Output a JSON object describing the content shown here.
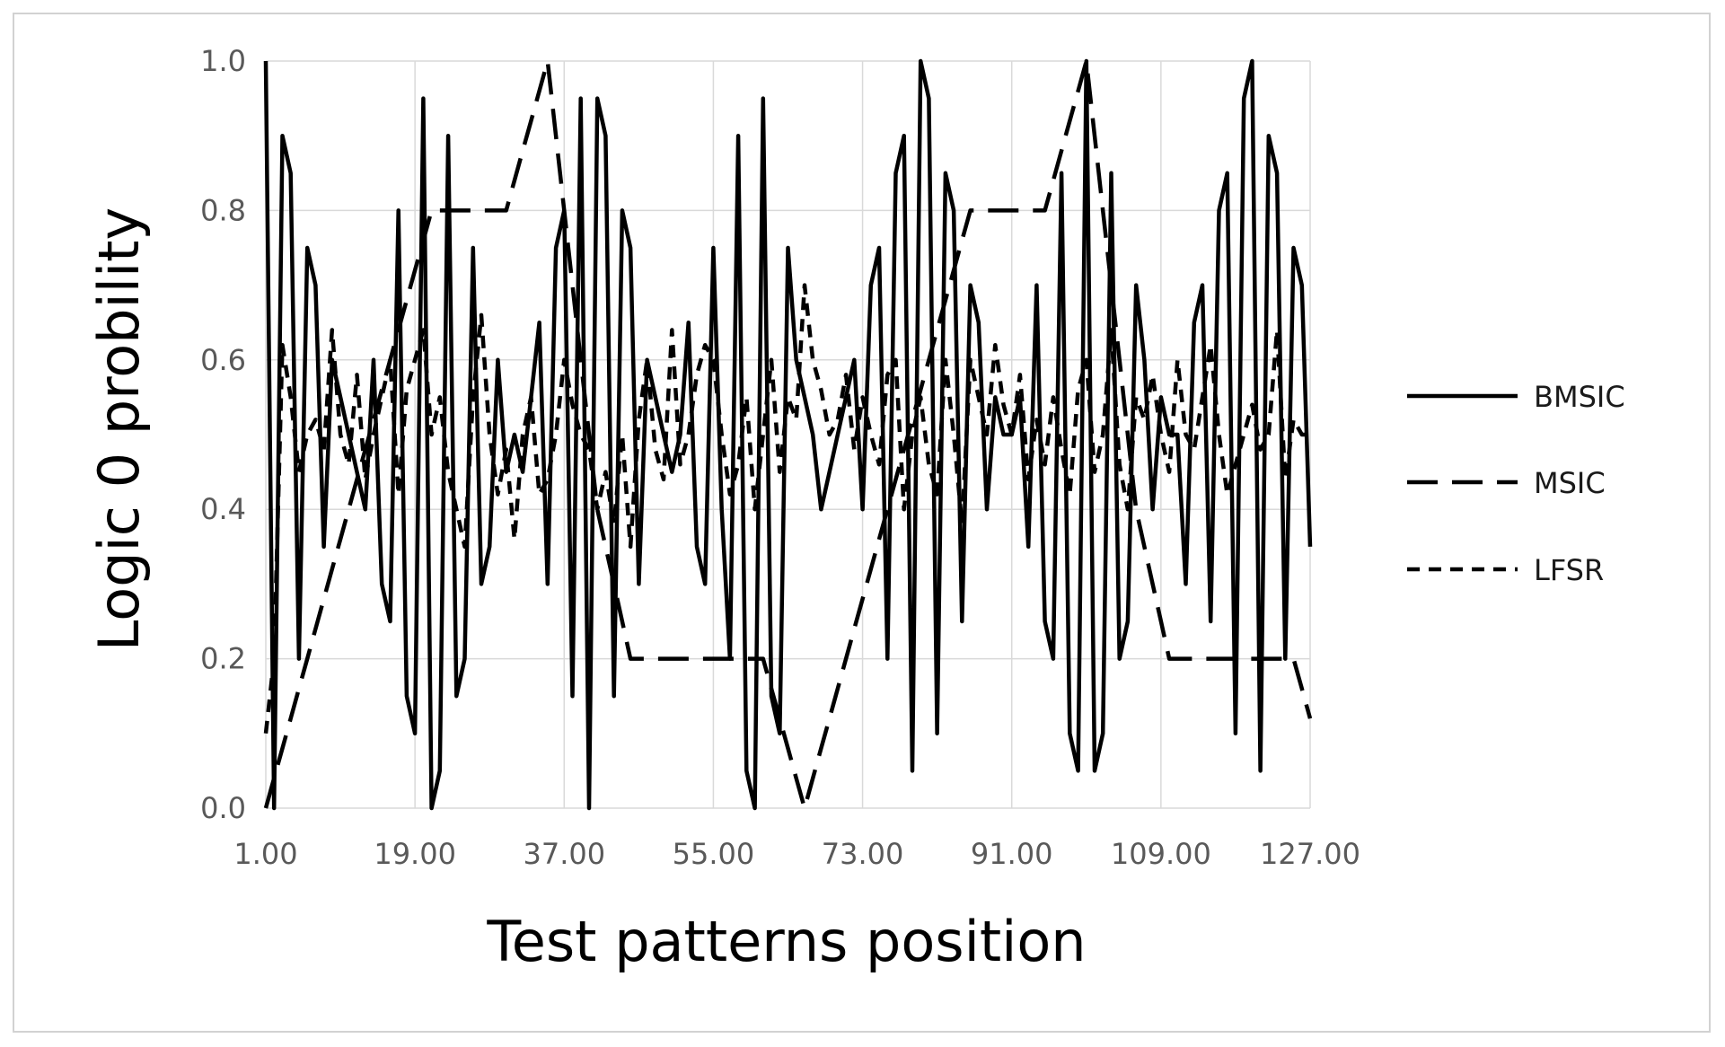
{
  "chart_data": {
    "type": "line",
    "title": "",
    "xlabel": "Test patterns position",
    "ylabel": "Logic 0 probility",
    "xlim": [
      1,
      127
    ],
    "ylim": [
      0,
      1
    ],
    "x_ticks": [
      "1.00",
      "19.00",
      "37.00",
      "55.00",
      "73.00",
      "91.00",
      "109.00",
      "127.00"
    ],
    "y_ticks": [
      "0.0",
      "0.2",
      "0.4",
      "0.6",
      "0.8",
      "1.0"
    ],
    "grid": true,
    "legend_position": "right",
    "series": [
      {
        "name": "BMSIC",
        "style": "solid",
        "color": "#000000",
        "x": [
          1,
          2,
          3,
          4,
          5,
          6,
          7,
          8,
          9,
          10,
          11,
          12,
          13,
          14,
          15,
          16,
          17,
          18,
          19,
          20,
          21,
          22,
          23,
          24,
          25,
          26,
          27,
          28,
          29,
          30,
          31,
          32,
          33,
          34,
          35,
          36,
          37,
          38,
          39,
          40,
          41,
          42,
          43,
          44,
          45,
          46,
          47,
          48,
          49,
          50,
          51,
          52,
          53,
          54,
          55,
          56,
          57,
          58,
          59,
          60,
          61,
          62,
          63,
          64,
          65,
          66,
          67,
          68,
          69,
          70,
          71,
          72,
          73,
          74,
          75,
          76,
          77,
          78,
          79,
          80,
          81,
          82,
          83,
          84,
          85,
          86,
          87,
          88,
          89,
          90,
          91,
          92,
          93,
          94,
          95,
          96,
          97,
          98,
          99,
          100,
          101,
          102,
          103,
          104,
          105,
          106,
          107,
          108,
          109,
          110,
          111,
          112,
          113,
          114,
          115,
          116,
          117,
          118,
          119,
          120,
          121,
          122,
          123,
          124,
          125,
          126,
          127
        ],
        "y": [
          1.0,
          0.0,
          0.9,
          0.85,
          0.2,
          0.75,
          0.7,
          0.35,
          0.6,
          0.55,
          0.5,
          0.45,
          0.4,
          0.6,
          0.3,
          0.25,
          0.8,
          0.15,
          0.1,
          0.95,
          0.0,
          0.05,
          0.9,
          0.15,
          0.2,
          0.75,
          0.3,
          0.35,
          0.6,
          0.45,
          0.5,
          0.45,
          0.55,
          0.65,
          0.3,
          0.75,
          0.8,
          0.15,
          0.95,
          0.0,
          0.95,
          0.9,
          0.15,
          0.8,
          0.75,
          0.3,
          0.6,
          0.55,
          0.5,
          0.45,
          0.5,
          0.65,
          0.35,
          0.3,
          0.75,
          0.4,
          0.2,
          0.9,
          0.05,
          0.0,
          0.95,
          0.15,
          0.1,
          0.75,
          0.6,
          0.55,
          0.5,
          0.4,
          0.45,
          0.5,
          0.55,
          0.6,
          0.4,
          0.7,
          0.75,
          0.2,
          0.85,
          0.9,
          0.05,
          1.0,
          0.95,
          0.1,
          0.85,
          0.8,
          0.25,
          0.7,
          0.65,
          0.4,
          0.55,
          0.5,
          0.5,
          0.55,
          0.35,
          0.7,
          0.25,
          0.2,
          0.85,
          0.1,
          0.05,
          1.0,
          0.05,
          0.1,
          0.85,
          0.2,
          0.25,
          0.7,
          0.6,
          0.4,
          0.55,
          0.5,
          0.5,
          0.3,
          0.65,
          0.7,
          0.25,
          0.8,
          0.85,
          0.1,
          0.95,
          1.0,
          0.05,
          0.9,
          0.85,
          0.2,
          0.75,
          0.7,
          0.35
        ]
      },
      {
        "name": "MSIC",
        "style": "long-dash",
        "color": "#000000",
        "x": [
          1,
          2,
          3,
          4,
          5,
          6,
          7,
          8,
          9,
          10,
          11,
          12,
          13,
          14,
          15,
          16,
          17,
          18,
          19,
          20,
          21,
          22,
          23,
          24,
          25,
          26,
          27,
          28,
          29,
          30,
          31,
          32,
          33,
          34,
          35,
          36,
          37,
          38,
          39,
          40,
          41,
          42,
          43,
          44,
          45,
          46,
          47,
          48,
          49,
          50,
          51,
          52,
          53,
          54,
          55,
          56,
          57,
          58,
          59,
          60,
          61,
          62,
          63,
          64,
          65,
          66,
          67,
          68,
          69,
          70,
          71,
          72,
          73,
          74,
          75,
          76,
          77,
          78,
          79,
          80,
          81,
          82,
          83,
          84,
          85,
          86,
          87,
          88,
          89,
          90,
          91,
          92,
          93,
          94,
          95,
          96,
          97,
          98,
          99,
          100,
          101,
          102,
          103,
          104,
          105,
          106,
          107,
          108,
          109,
          110,
          111,
          112,
          113,
          114,
          115,
          116,
          117,
          118,
          119,
          120,
          121,
          122,
          123,
          124,
          125,
          126,
          127
        ],
        "y": [
          0.0,
          0.04,
          0.08,
          0.12,
          0.16,
          0.2,
          0.24,
          0.28,
          0.32,
          0.36,
          0.4,
          0.44,
          0.48,
          0.52,
          0.56,
          0.6,
          0.64,
          0.68,
          0.72,
          0.76,
          0.8,
          0.8,
          0.8,
          0.8,
          0.8,
          0.8,
          0.8,
          0.8,
          0.8,
          0.8,
          0.84,
          0.88,
          0.92,
          0.96,
          1.0,
          0.9,
          0.8,
          0.7,
          0.6,
          0.5,
          0.4,
          0.35,
          0.3,
          0.25,
          0.2,
          0.2,
          0.2,
          0.2,
          0.2,
          0.2,
          0.2,
          0.2,
          0.2,
          0.2,
          0.2,
          0.2,
          0.2,
          0.2,
          0.2,
          0.2,
          0.2,
          0.16,
          0.12,
          0.08,
          0.04,
          0.0,
          0.04,
          0.08,
          0.12,
          0.16,
          0.2,
          0.24,
          0.28,
          0.32,
          0.36,
          0.4,
          0.44,
          0.48,
          0.52,
          0.56,
          0.6,
          0.64,
          0.68,
          0.72,
          0.76,
          0.8,
          0.8,
          0.8,
          0.8,
          0.8,
          0.8,
          0.8,
          0.8,
          0.8,
          0.8,
          0.84,
          0.88,
          0.92,
          0.96,
          1.0,
          0.9,
          0.8,
          0.7,
          0.6,
          0.5,
          0.4,
          0.35,
          0.3,
          0.25,
          0.2,
          0.2,
          0.2,
          0.2,
          0.2,
          0.2,
          0.2,
          0.2,
          0.2,
          0.2,
          0.2,
          0.2,
          0.2,
          0.2,
          0.2,
          0.2,
          0.16,
          0.12
        ]
      },
      {
        "name": "LFSR",
        "style": "short-dash",
        "color": "#000000",
        "x": [
          1,
          2,
          3,
          4,
          5,
          6,
          7,
          8,
          9,
          10,
          11,
          12,
          13,
          14,
          15,
          16,
          17,
          18,
          19,
          20,
          21,
          22,
          23,
          24,
          25,
          26,
          27,
          28,
          29,
          30,
          31,
          32,
          33,
          34,
          35,
          36,
          37,
          38,
          39,
          40,
          41,
          42,
          43,
          44,
          45,
          46,
          47,
          48,
          49,
          50,
          51,
          52,
          53,
          54,
          55,
          56,
          57,
          58,
          59,
          60,
          61,
          62,
          63,
          64,
          65,
          66,
          67,
          68,
          69,
          70,
          71,
          72,
          73,
          74,
          75,
          76,
          77,
          78,
          79,
          80,
          81,
          82,
          83,
          84,
          85,
          86,
          87,
          88,
          89,
          90,
          91,
          92,
          93,
          94,
          95,
          96,
          97,
          98,
          99,
          100,
          101,
          102,
          103,
          104,
          105,
          106,
          107,
          108,
          109,
          110,
          111,
          112,
          113,
          114,
          115,
          116,
          117,
          118,
          119,
          120,
          121,
          122,
          123,
          124,
          125,
          126,
          127
        ],
        "y": [
          0.1,
          0.2,
          0.62,
          0.55,
          0.45,
          0.5,
          0.52,
          0.48,
          0.64,
          0.5,
          0.46,
          0.58,
          0.44,
          0.5,
          0.55,
          0.6,
          0.42,
          0.56,
          0.6,
          0.64,
          0.5,
          0.55,
          0.45,
          0.4,
          0.35,
          0.55,
          0.66,
          0.5,
          0.42,
          0.48,
          0.36,
          0.5,
          0.55,
          0.42,
          0.44,
          0.5,
          0.6,
          0.54,
          0.5,
          0.48,
          0.4,
          0.45,
          0.38,
          0.5,
          0.35,
          0.52,
          0.6,
          0.48,
          0.44,
          0.64,
          0.46,
          0.5,
          0.58,
          0.62,
          0.6,
          0.5,
          0.42,
          0.46,
          0.55,
          0.4,
          0.5,
          0.6,
          0.45,
          0.55,
          0.52,
          0.7,
          0.6,
          0.56,
          0.5,
          0.52,
          0.58,
          0.48,
          0.55,
          0.5,
          0.46,
          0.58,
          0.6,
          0.4,
          0.5,
          0.55,
          0.46,
          0.42,
          0.6,
          0.5,
          0.38,
          0.6,
          0.55,
          0.5,
          0.62,
          0.54,
          0.5,
          0.58,
          0.44,
          0.52,
          0.46,
          0.55,
          0.48,
          0.42,
          0.56,
          0.6,
          0.45,
          0.5,
          0.64,
          0.46,
          0.4,
          0.55,
          0.52,
          0.58,
          0.5,
          0.45,
          0.6,
          0.5,
          0.48,
          0.55,
          0.62,
          0.5,
          0.42,
          0.46,
          0.5,
          0.54,
          0.48,
          0.5,
          0.64,
          0.44,
          0.52,
          0.5,
          0.5
        ]
      }
    ]
  }
}
